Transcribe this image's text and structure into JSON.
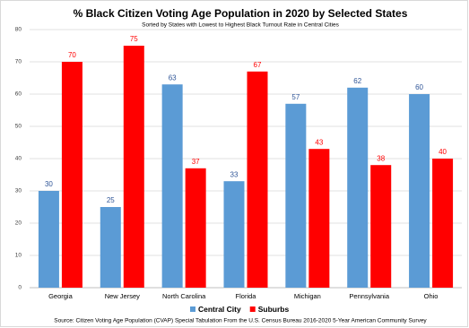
{
  "chart_data": {
    "type": "bar",
    "title": "% Black Citizen Voting Age Population in 2020 by Selected States",
    "subtitle": "Sorted by States with Lowest to Highest Black Turnout Rate in Central Cities",
    "categories": [
      "Georgia",
      "New Jersey",
      "North Carolina",
      "Florida",
      "Michigan",
      "Pennsylvania",
      "Ohio"
    ],
    "series": [
      {
        "name": "Central City",
        "color": "#5b9bd5",
        "values": [
          30,
          25,
          63,
          33,
          57,
          62,
          60
        ]
      },
      {
        "name": "Suburbs",
        "color": "#ff0000",
        "values": [
          70,
          75,
          37,
          67,
          43,
          38,
          40
        ]
      }
    ],
    "ylim": [
      0,
      80
    ],
    "yticks": [
      0,
      10,
      20,
      30,
      40,
      50,
      60,
      70,
      80
    ],
    "grid": true,
    "legend": "bottom",
    "source": "Source: Citizen Voting Age Population (CVAP) Special Tabulation From the U.S. Census Bureau 2016-2020 5-Year American Community Survey"
  }
}
